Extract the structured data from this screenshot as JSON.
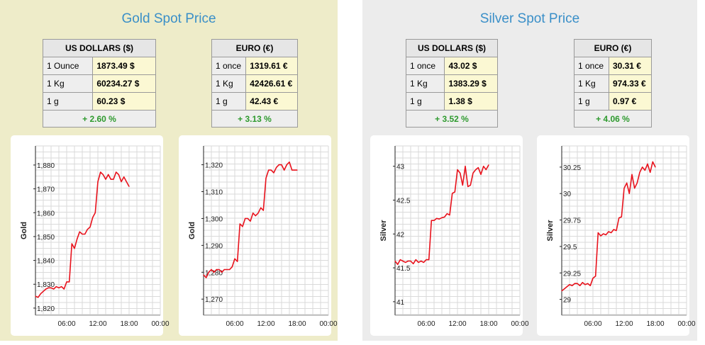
{
  "gold": {
    "title": "Gold Spot Price",
    "usd": {
      "header": "US DOLLARS ($)",
      "rows": [
        {
          "unit": "1 Ounce",
          "value": "1873.49 $"
        },
        {
          "unit": "1 Kg",
          "value": "60234.27 $"
        },
        {
          "unit": "1 g",
          "value": "60.23 $"
        }
      ],
      "change": "+ 2.60 %"
    },
    "eur": {
      "header": "EURO (€)",
      "rows": [
        {
          "unit": "1 once",
          "value": "1319.61 €"
        },
        {
          "unit": "1 Kg",
          "value": "42426.61 €"
        },
        {
          "unit": "1 g",
          "value": "42.43 €"
        }
      ],
      "change": "+ 3.13 %"
    }
  },
  "silver": {
    "title": "Silver Spot Price",
    "usd": {
      "header": "US DOLLARS ($)",
      "rows": [
        {
          "unit": "1 once",
          "value": "43.02 $"
        },
        {
          "unit": "1 Kg",
          "value": "1383.29 $"
        },
        {
          "unit": "1 g",
          "value": "1.38 $"
        }
      ],
      "change": "+ 3.52 %"
    },
    "eur": {
      "header": "EURO (€)",
      "rows": [
        {
          "unit": "1 once",
          "value": "30.31 €"
        },
        {
          "unit": "1 Kg",
          "value": "974.33 €"
        },
        {
          "unit": "1 g",
          "value": "0.97 €"
        }
      ],
      "change": "+ 4.06 %"
    }
  },
  "colors": {
    "line": "#e8121c",
    "title": "#3a8fc8",
    "change": "#2e9a2e"
  },
  "chart_data": [
    {
      "type": "line",
      "ylabel": "Gold",
      "ylim": [
        1817,
        1888
      ],
      "xlim": [
        0,
        24
      ],
      "yticks": [
        {
          "v": 1820,
          "l": "1,820"
        },
        {
          "v": 1830,
          "l": "1,830"
        },
        {
          "v": 1840,
          "l": "1,840"
        },
        {
          "v": 1850,
          "l": "1,850"
        },
        {
          "v": 1860,
          "l": "1,860"
        },
        {
          "v": 1870,
          "l": "1,870"
        },
        {
          "v": 1880,
          "l": "1,880"
        }
      ],
      "xticks": [
        {
          "v": 6,
          "l": "06:00"
        },
        {
          "v": 12,
          "l": "12:00"
        },
        {
          "v": 18,
          "l": "18:00"
        },
        {
          "v": 24,
          "l": "00:00"
        }
      ],
      "x": [
        0,
        0.5,
        1,
        1.5,
        2,
        2.5,
        3,
        3.5,
        4,
        4.5,
        5,
        5.5,
        6,
        6.5,
        7,
        7.5,
        8,
        8.5,
        9,
        9.5,
        10,
        10.5,
        11,
        11.5,
        12,
        12.5,
        13,
        13.5,
        14,
        14.5,
        15,
        15.5,
        16,
        16.5,
        17,
        17.5,
        18
      ],
      "values": [
        1825,
        1824.5,
        1826,
        1827,
        1828,
        1828.5,
        1828.5,
        1828,
        1829,
        1828.5,
        1829,
        1828,
        1831,
        1831,
        1847,
        1845,
        1849,
        1852,
        1851,
        1851,
        1853,
        1854,
        1858,
        1860,
        1873,
        1877,
        1876,
        1874,
        1876,
        1874,
        1874,
        1877,
        1876,
        1873,
        1875,
        1873,
        1871
      ]
    },
    {
      "type": "line",
      "ylabel": "Gold",
      "ylim": [
        1264,
        1327
      ],
      "xlim": [
        0,
        24
      ],
      "yticks": [
        {
          "v": 1270,
          "l": "1,270"
        },
        {
          "v": 1280,
          "l": "1,280"
        },
        {
          "v": 1290,
          "l": "1,290"
        },
        {
          "v": 1300,
          "l": "1,300"
        },
        {
          "v": 1310,
          "l": "1,310"
        },
        {
          "v": 1320,
          "l": "1,320"
        }
      ],
      "xticks": [
        {
          "v": 6,
          "l": "06:00"
        },
        {
          "v": 12,
          "l": "12:00"
        },
        {
          "v": 18,
          "l": "18:00"
        },
        {
          "v": 24,
          "l": "00:00"
        }
      ],
      "x": [
        0,
        0.5,
        1,
        1.5,
        2,
        2.5,
        3,
        3.5,
        4,
        4.5,
        5,
        5.5,
        6,
        6.5,
        7,
        7.5,
        8,
        8.5,
        9,
        9.5,
        10,
        10.5,
        11,
        11.5,
        12,
        12.5,
        13,
        13.5,
        14,
        14.5,
        15,
        15.5,
        16,
        16.5,
        17,
        17.5,
        18
      ],
      "values": [
        1279,
        1278,
        1280,
        1281,
        1280,
        1281,
        1281,
        1280,
        1281,
        1281,
        1281,
        1282,
        1285,
        1284,
        1298,
        1297,
        1300,
        1300,
        1299,
        1302,
        1301,
        1302,
        1304,
        1303,
        1315,
        1318,
        1318,
        1317,
        1319,
        1320,
        1320,
        1318,
        1320,
        1321,
        1318,
        1318,
        1318
      ]
    },
    {
      "type": "line",
      "ylabel": "Silver",
      "ylim": [
        40.8,
        43.3
      ],
      "xlim": [
        0,
        24
      ],
      "yticks": [
        {
          "v": 41,
          "l": "41"
        },
        {
          "v": 41.5,
          "l": "41.5"
        },
        {
          "v": 42,
          "l": "42"
        },
        {
          "v": 42.5,
          "l": "42.5"
        },
        {
          "v": 43,
          "l": "43"
        }
      ],
      "xticks": [
        {
          "v": 6,
          "l": "06:00"
        },
        {
          "v": 12,
          "l": "12:00"
        },
        {
          "v": 18,
          "l": "18:00"
        },
        {
          "v": 24,
          "l": "00:00"
        }
      ],
      "x": [
        0,
        0.5,
        1,
        1.5,
        2,
        2.5,
        3,
        3.5,
        4,
        4.5,
        5,
        5.5,
        6,
        6.5,
        7,
        7.5,
        8,
        8.5,
        9,
        9.5,
        10,
        10.5,
        11,
        11.5,
        12,
        12.5,
        13,
        13.5,
        14,
        14.5,
        15,
        15.5,
        16,
        16.5,
        17,
        17.5,
        18
      ],
      "values": [
        41.6,
        41.55,
        41.62,
        41.6,
        41.58,
        41.6,
        41.6,
        41.56,
        41.62,
        41.58,
        41.6,
        41.58,
        41.62,
        41.62,
        42.2,
        42.2,
        42.23,
        42.22,
        42.24,
        42.25,
        42.3,
        42.28,
        42.6,
        42.62,
        42.95,
        42.9,
        42.72,
        43,
        42.7,
        42.72,
        42.9,
        42.95,
        42.98,
        42.88,
        43,
        42.95,
        43.02
      ]
    },
    {
      "type": "line",
      "ylabel": "Silver",
      "ylim": [
        28.85,
        30.45
      ],
      "xlim": [
        0,
        24
      ],
      "yticks": [
        {
          "v": 29,
          "l": "29"
        },
        {
          "v": 29.25,
          "l": "29.25"
        },
        {
          "v": 29.5,
          "l": "29.5"
        },
        {
          "v": 29.75,
          "l": "29.75"
        },
        {
          "v": 30,
          "l": "30"
        },
        {
          "v": 30.25,
          "l": "30.25"
        }
      ],
      "xticks": [
        {
          "v": 6,
          "l": "06:00"
        },
        {
          "v": 12,
          "l": "12:00"
        },
        {
          "v": 18,
          "l": "18:00"
        },
        {
          "v": 24,
          "l": "00:00"
        }
      ],
      "x": [
        0,
        0.5,
        1,
        1.5,
        2,
        2.5,
        3,
        3.5,
        4,
        4.5,
        5,
        5.5,
        6,
        6.5,
        7,
        7.5,
        8,
        8.5,
        9,
        9.5,
        10,
        10.5,
        11,
        11.5,
        12,
        12.5,
        13,
        13.5,
        14,
        14.5,
        15,
        15.5,
        16,
        16.5,
        17,
        17.5,
        18
      ],
      "values": [
        29.08,
        29.1,
        29.12,
        29.14,
        29.13,
        29.15,
        29.15,
        29.13,
        29.16,
        29.14,
        29.15,
        29.13,
        29.2,
        29.22,
        29.63,
        29.6,
        29.62,
        29.61,
        29.64,
        29.63,
        29.66,
        29.65,
        29.77,
        29.78,
        30.05,
        30.1,
        30.0,
        30.18,
        30.05,
        30.1,
        30.2,
        30.25,
        30.22,
        30.28,
        30.2,
        30.3,
        30.25
      ]
    }
  ]
}
